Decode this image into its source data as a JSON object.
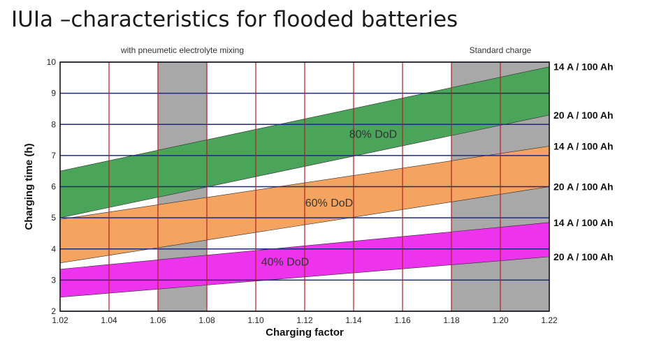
{
  "page": {
    "title": "IUIa –characteristics for flooded batteries"
  },
  "chart_data": {
    "type": "area",
    "xlabel": "Charging factor",
    "ylabel": "Charging time (h)",
    "xlim": [
      1.02,
      1.22
    ],
    "ylim": [
      2,
      10
    ],
    "x_ticks": [
      "1.02",
      "1.04",
      "1.06",
      "1.08",
      "1.10",
      "1.12",
      "1.14",
      "1.16",
      "1.18",
      "1.20",
      "1.22"
    ],
    "y_ticks": [
      "2",
      "3",
      "4",
      "5",
      "6",
      "7",
      "8",
      "9",
      "10"
    ],
    "grid": true,
    "regions": [
      {
        "label": "",
        "x_range": [
          1.06,
          1.08
        ],
        "color": "#a8a8a8"
      },
      {
        "label": "Standard charge",
        "x_range": [
          1.18,
          1.22
        ],
        "color": "#a8a8a8"
      }
    ],
    "annotations": [
      {
        "text": "with pneumetic electrolyte mixing",
        "x": 1.07
      }
    ],
    "series": [
      {
        "name": "80% DoD",
        "color": "#4aa45a",
        "label_x": 1.148,
        "label_y": 7.7,
        "x": [
          1.02,
          1.22
        ],
        "upper": [
          6.5,
          9.85
        ],
        "lower": [
          5.0,
          8.3
        ],
        "upper_rate_label": "14 A / 100 Ah",
        "lower_rate_label": "20 A / 100 Ah"
      },
      {
        "name": "60% DoD",
        "color": "#f4a460",
        "label_x": 1.13,
        "label_y": 5.5,
        "x": [
          1.02,
          1.22
        ],
        "upper": [
          4.95,
          7.3
        ],
        "lower": [
          3.55,
          6.0
        ],
        "upper_rate_label": "14 A / 100 Ah",
        "lower_rate_label": "20 A / 100 Ah"
      },
      {
        "name": "40% DoD",
        "color": "#ee33ee",
        "label_x": 1.112,
        "label_y": 3.6,
        "x": [
          1.02,
          1.22
        ],
        "upper": [
          3.35,
          4.85
        ],
        "lower": [
          2.45,
          3.75
        ],
        "upper_rate_label": "14 A / 100 Ah",
        "lower_rate_label": "20 A / 100 Ah"
      }
    ]
  }
}
